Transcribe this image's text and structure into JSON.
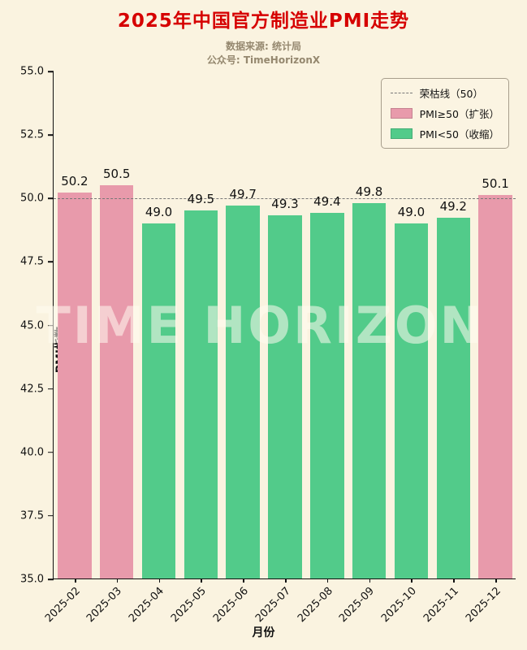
{
  "title": "2025年中国官方制造业PMI走势",
  "subtitle_line1": "数据来源: 统计局",
  "subtitle_line2": "公众号: TimeHorizonX",
  "watermark": "TIME HORIZON",
  "colors": {
    "title": "#d60000",
    "background": "#faf3e0",
    "expand_bar": "#e89aab",
    "contract_bar": "#52cb8a",
    "threshold_line": "#777777"
  },
  "legend": {
    "threshold_label": "荣枯线（50）",
    "expand_label": "PMI≥50（扩张）",
    "contract_label": "PMI<50（收缩）"
  },
  "chart_data": {
    "type": "bar",
    "title": "2025年中国官方制造业PMI走势",
    "categories": [
      "2025-02",
      "2025-03",
      "2025-04",
      "2025-05",
      "2025-06",
      "2025-07",
      "2025-08",
      "2025-09",
      "2025-10",
      "2025-11",
      "2025-12"
    ],
    "values": [
      50.2,
      50.5,
      49.0,
      49.5,
      49.7,
      49.3,
      49.4,
      49.8,
      49.0,
      49.2,
      50.1
    ],
    "xlabel": "月份",
    "ylabel": "PMI指数",
    "ylim": [
      35.0,
      55.0
    ],
    "ytick_step": 2.5,
    "threshold": 50,
    "grid": false,
    "legend_position": "upper-right"
  }
}
